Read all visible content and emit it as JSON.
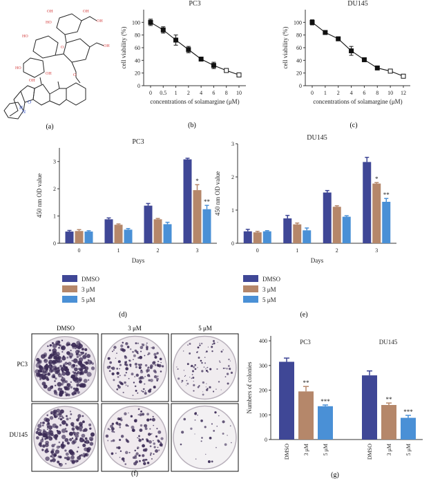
{
  "panel_labels": {
    "a": "(a)",
    "b": "(b)",
    "c": "(c)",
    "d": "(d)",
    "e": "(e)",
    "f": "(f)",
    "g": "(g)"
  },
  "colors": {
    "dmso": "#3f4796",
    "m3": "#b5876a",
    "m5": "#4a90d6",
    "axis": "#333333",
    "plate_dark": "#3a2a55"
  },
  "molecule": {
    "labels": [
      "OH",
      "HO",
      "OH",
      "OH",
      "HO",
      "HO",
      "O",
      "O",
      "OH",
      "OH",
      "OH",
      "H",
      "N",
      "O"
    ]
  },
  "plates": {
    "col_labels": [
      "DMSO",
      "3 μM",
      "5 μM"
    ],
    "row_labels": [
      "PC3",
      "DU145"
    ]
  },
  "chart_data": [
    {
      "id": "b",
      "type": "line",
      "title": "PC3",
      "xlabel": "concentrations of solamargine (μM)",
      "ylabel": "cell viability (%)",
      "categories": [
        "0",
        "0.5",
        "1",
        "2",
        "4",
        "6",
        "8",
        "10"
      ],
      "values": [
        100,
        88,
        72,
        57,
        42,
        32,
        24,
        17
      ],
      "errors": [
        5,
        5,
        8,
        5,
        3,
        5,
        3,
        3
      ],
      "ylim": [
        0,
        120
      ],
      "yticks": [
        "0",
        "20",
        "40",
        "60",
        "80",
        "100"
      ]
    },
    {
      "id": "c",
      "type": "line",
      "title": "DU145",
      "xlabel": "concentrations of solamargine (μM)",
      "ylabel": "cell viability (%)",
      "categories": [
        "0",
        "1",
        "2",
        "4",
        "6",
        "8",
        "10",
        "12"
      ],
      "values": [
        100,
        84,
        74,
        55,
        41,
        28,
        23,
        15
      ],
      "errors": [
        4,
        3,
        3,
        7,
        3,
        3,
        2,
        3
      ],
      "ylim": [
        0,
        120
      ],
      "yticks": [
        "0",
        "20",
        "40",
        "60",
        "80",
        "100"
      ]
    },
    {
      "id": "d",
      "type": "bar",
      "title": "PC3",
      "xlabel": "Days",
      "ylabel": "450 nm OD value",
      "categories": [
        "0",
        "1",
        "2",
        "3"
      ],
      "series": [
        {
          "name": "DMSO",
          "values": [
            0.43,
            0.88,
            1.38,
            3.08
          ],
          "errors": [
            0.04,
            0.05,
            0.08,
            0.04
          ]
        },
        {
          "name": "3 μM",
          "values": [
            0.45,
            0.68,
            0.88,
            1.95
          ],
          "errors": [
            0.05,
            0.03,
            0.03,
            0.2
          ]
        },
        {
          "name": "5 μM",
          "values": [
            0.43,
            0.5,
            0.7,
            1.25
          ],
          "errors": [
            0.03,
            0.04,
            0.07,
            0.14
          ]
        }
      ],
      "significance": [
        {
          "category": "3",
          "series": "3 μM",
          "label": "*"
        },
        {
          "category": "3",
          "series": "5 μM",
          "label": "**"
        }
      ],
      "ylim": [
        0,
        3.5
      ],
      "yticks": [
        "0",
        "1",
        "2",
        "3"
      ],
      "legend": [
        "DMSO",
        "3 μM",
        "5 μM"
      ]
    },
    {
      "id": "e",
      "type": "bar",
      "title": "DU145",
      "xlabel": "Days",
      "ylabel": "450 nm OD value",
      "categories": [
        "0",
        "1",
        "2",
        "3"
      ],
      "series": [
        {
          "name": "DMSO",
          "values": [
            0.36,
            0.75,
            1.53,
            2.45
          ],
          "errors": [
            0.06,
            0.09,
            0.06,
            0.14
          ]
        },
        {
          "name": "3 μM",
          "values": [
            0.33,
            0.57,
            1.1,
            1.8
          ],
          "errors": [
            0.03,
            0.04,
            0.03,
            0.03
          ]
        },
        {
          "name": "5 μM",
          "values": [
            0.36,
            0.39,
            0.8,
            1.25
          ],
          "errors": [
            0.02,
            0.07,
            0.03,
            0.1
          ]
        }
      ],
      "significance": [
        {
          "category": "3",
          "series": "3 μM",
          "label": "*"
        },
        {
          "category": "3",
          "series": "5 μM",
          "label": "**"
        }
      ],
      "ylim": [
        0,
        3
      ],
      "yticks": [
        "0",
        "1",
        "2",
        "3"
      ],
      "legend": [
        "DMSO",
        "3 μM",
        "5 μM"
      ]
    },
    {
      "id": "g",
      "type": "bar",
      "ylabel": "Numbers of colonies",
      "groups": [
        "PC3",
        "DU145"
      ],
      "categories": [
        "DMSO",
        "3 μM",
        "5 μM"
      ],
      "values": [
        [
          315,
          195,
          135
        ],
        [
          260,
          140,
          88
        ]
      ],
      "errors": [
        [
          15,
          20,
          5
        ],
        [
          18,
          8,
          10
        ]
      ],
      "significance": [
        [
          "",
          "**",
          "***"
        ],
        [
          "",
          "**",
          "***"
        ]
      ],
      "ylim": [
        0,
        420
      ],
      "yticks": [
        "0",
        "100",
        "200",
        "300",
        "400"
      ]
    }
  ]
}
